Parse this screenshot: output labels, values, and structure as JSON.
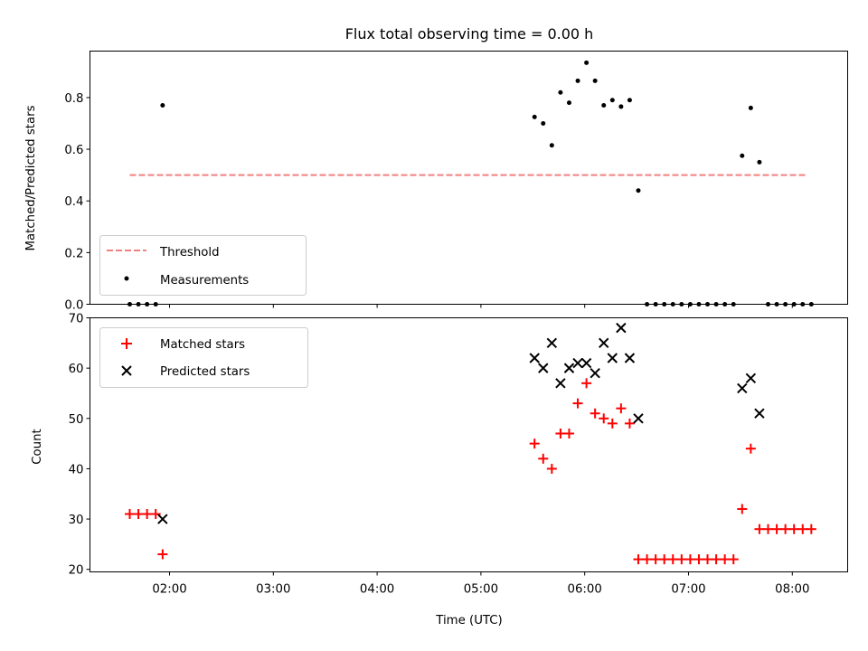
{
  "chart_data": [
    {
      "type": "scatter",
      "title": "Flux total observing time = 0.00 h",
      "xlabel": "",
      "ylabel": "Matched/Predicted stars",
      "ylim": [
        0,
        0.98
      ],
      "yticks": [
        "0.0",
        "0.2",
        "0.4",
        "0.6",
        "0.8"
      ],
      "ytick_values": [
        0,
        0.2,
        0.4,
        0.6,
        0.8
      ],
      "legend_position": "lower-left",
      "threshold": {
        "name": "Threshold",
        "value": 0.5,
        "x_range": [
          "01:37",
          "08:08"
        ],
        "color": "#f08080"
      },
      "series": [
        {
          "name": "Measurements",
          "marker": "dot",
          "color": "#000000",
          "points": [
            [
              "01:37",
              0.0
            ],
            [
              "01:42",
              0.0
            ],
            [
              "01:47",
              0.0
            ],
            [
              "01:52",
              0.0
            ],
            [
              "01:56",
              0.77
            ],
            [
              "05:31",
              0.725
            ],
            [
              "05:36",
              0.7
            ],
            [
              "05:41",
              0.615
            ],
            [
              "05:46",
              0.82
            ],
            [
              "05:51",
              0.78
            ],
            [
              "05:56",
              0.865
            ],
            [
              "06:01",
              0.935
            ],
            [
              "06:06",
              0.865
            ],
            [
              "06:11",
              0.77
            ],
            [
              "06:16",
              0.79
            ],
            [
              "06:21",
              0.765
            ],
            [
              "06:26",
              0.79
            ],
            [
              "06:31",
              0.44
            ],
            [
              "06:36",
              0.0
            ],
            [
              "06:41",
              0.0
            ],
            [
              "06:46",
              0.0
            ],
            [
              "06:51",
              0.0
            ],
            [
              "06:56",
              0.0
            ],
            [
              "07:01",
              0.0
            ],
            [
              "07:06",
              0.0
            ],
            [
              "07:11",
              0.0
            ],
            [
              "07:16",
              0.0
            ],
            [
              "07:21",
              0.0
            ],
            [
              "07:26",
              0.0
            ],
            [
              "07:31",
              0.575
            ],
            [
              "07:36",
              0.76
            ],
            [
              "07:41",
              0.55
            ],
            [
              "07:46",
              0.0
            ],
            [
              "07:51",
              0.0
            ],
            [
              "07:56",
              0.0
            ],
            [
              "08:01",
              0.0
            ],
            [
              "08:06",
              0.0
            ],
            [
              "08:11",
              0.0
            ]
          ]
        }
      ]
    },
    {
      "type": "scatter",
      "title": "",
      "xlabel": "Time (UTC)",
      "ylabel": "Count",
      "ylim": [
        19.5,
        70
      ],
      "yticks": [
        "20",
        "30",
        "40",
        "50",
        "60",
        "70"
      ],
      "ytick_values": [
        20,
        30,
        40,
        50,
        60,
        70
      ],
      "xlim": [
        "01:14",
        "08:32"
      ],
      "xticks": [
        "02:00",
        "03:00",
        "04:00",
        "05:00",
        "06:00",
        "07:00",
        "08:00"
      ],
      "legend_position": "upper-left",
      "series": [
        {
          "name": "Matched stars",
          "marker": "plus",
          "color": "#ff0000",
          "points": [
            [
              "01:37",
              31
            ],
            [
              "01:42",
              31
            ],
            [
              "01:47",
              31
            ],
            [
              "01:52",
              31
            ],
            [
              "01:56",
              23
            ],
            [
              "05:31",
              45
            ],
            [
              "05:36",
              42
            ],
            [
              "05:41",
              40
            ],
            [
              "05:46",
              47
            ],
            [
              "05:51",
              47
            ],
            [
              "05:56",
              53
            ],
            [
              "06:01",
              57
            ],
            [
              "06:06",
              51
            ],
            [
              "06:11",
              50
            ],
            [
              "06:16",
              49
            ],
            [
              "06:21",
              52
            ],
            [
              "06:26",
              49
            ],
            [
              "06:31",
              22
            ],
            [
              "06:36",
              22
            ],
            [
              "06:41",
              22
            ],
            [
              "06:46",
              22
            ],
            [
              "06:51",
              22
            ],
            [
              "06:56",
              22
            ],
            [
              "07:01",
              22
            ],
            [
              "07:06",
              22
            ],
            [
              "07:11",
              22
            ],
            [
              "07:16",
              22
            ],
            [
              "07:21",
              22
            ],
            [
              "07:26",
              22
            ],
            [
              "07:31",
              32
            ],
            [
              "07:36",
              44
            ],
            [
              "07:41",
              28
            ],
            [
              "07:46",
              28
            ],
            [
              "07:51",
              28
            ],
            [
              "07:56",
              28
            ],
            [
              "08:01",
              28
            ],
            [
              "08:06",
              28
            ],
            [
              "08:11",
              28
            ]
          ]
        },
        {
          "name": "Predicted stars",
          "marker": "x",
          "color": "#000000",
          "points": [
            [
              "01:56",
              30
            ],
            [
              "05:31",
              62
            ],
            [
              "05:36",
              60
            ],
            [
              "05:41",
              65
            ],
            [
              "05:46",
              57
            ],
            [
              "05:51",
              60
            ],
            [
              "05:56",
              61
            ],
            [
              "06:01",
              61
            ],
            [
              "06:06",
              59
            ],
            [
              "06:11",
              65
            ],
            [
              "06:16",
              62
            ],
            [
              "06:21",
              68
            ],
            [
              "06:26",
              62
            ],
            [
              "06:31",
              50
            ],
            [
              "07:31",
              56
            ],
            [
              "07:36",
              58
            ],
            [
              "07:41",
              51
            ]
          ]
        }
      ]
    }
  ]
}
